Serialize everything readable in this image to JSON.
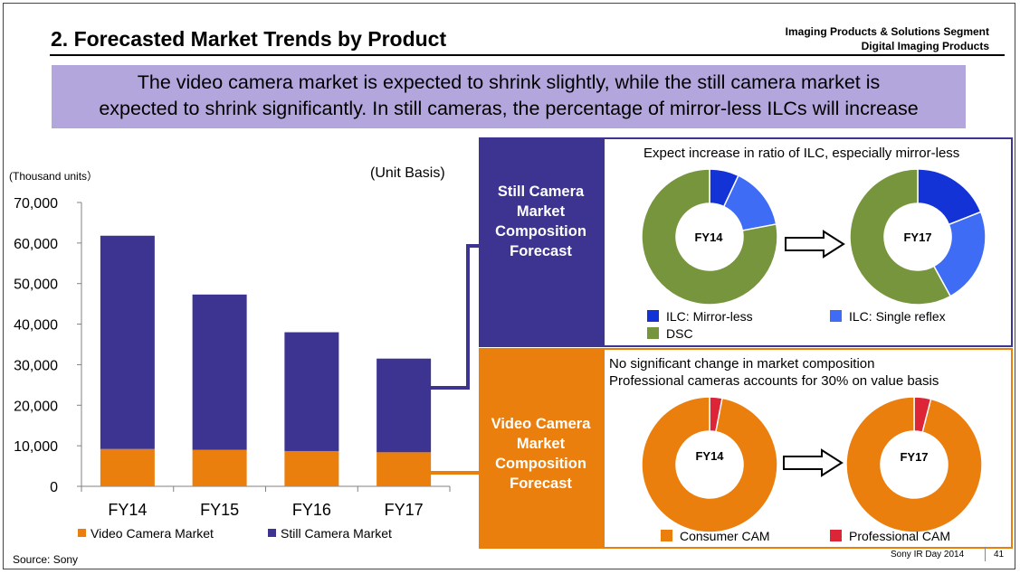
{
  "header": {
    "title": "2. Forecasted Market Trends by Product",
    "segment_line1": "Imaging Products & Solutions Segment",
    "segment_line2": "Digital Imaging Products"
  },
  "banner": {
    "line1": "The video camera market is expected to shrink slightly, while the still camera market is",
    "line2": "expected to shrink significantly. In still cameras, the percentage of mirror-less ILCs will increase"
  },
  "footer": {
    "source": "Source: Sony",
    "event": "Sony IR Day 2014",
    "page_number": "41"
  },
  "colors": {
    "still_camera": "#3d3492",
    "video_camera": "#ea7f0e",
    "banner": "#b3a6dd",
    "ilc_mirrorless": "#1433d6",
    "ilc_single_reflex": "#3f6cf5",
    "dsc": "#77953c",
    "consumer_cam": "#ea7f0e",
    "professional_cam": "#dc2638"
  },
  "chart_data": [
    {
      "type": "bar",
      "stacked": true,
      "units_label": "(Thousand units）",
      "basis_label": "(Unit Basis)",
      "categories": [
        "FY14",
        "FY15",
        "FY16",
        "FY17"
      ],
      "series": [
        {
          "name": "Video Camera Market",
          "values": [
            9200,
            9000,
            8700,
            8400
          ]
        },
        {
          "name": "Still Camera Market",
          "values": [
            52600,
            38300,
            29300,
            23100
          ]
        }
      ],
      "ylim": [
        0,
        70000
      ],
      "yticks": [
        0,
        10000,
        20000,
        30000,
        40000,
        50000,
        60000,
        70000
      ],
      "ytick_labels": [
        "0",
        "10,000",
        "20,000",
        "30,000",
        "40,000",
        "50,000",
        "60,000",
        "70,000"
      ],
      "grid": false,
      "legend_position": "bottom"
    },
    {
      "type": "pie",
      "donut": true,
      "group_label": "Still Camera Market Composition Forecast",
      "note": "Expect increase in ratio of ILC, especially mirror-less",
      "legend": [
        "ILC: Mirror-less",
        "ILC: Single reflex",
        "DSC"
      ],
      "charts": [
        {
          "label": "FY14",
          "slices": [
            {
              "name": "ILC: Mirror-less",
              "value": 7
            },
            {
              "name": "ILC: Single reflex",
              "value": 15
            },
            {
              "name": "DSC",
              "value": 78
            }
          ]
        },
        {
          "label": "FY17",
          "slices": [
            {
              "name": "ILC: Mirror-less",
              "value": 19
            },
            {
              "name": "ILC: Single reflex",
              "value": 23
            },
            {
              "name": "DSC",
              "value": 58
            }
          ]
        }
      ]
    },
    {
      "type": "pie",
      "donut": true,
      "group_label": "Video Camera Market Composition Forecast",
      "note_line1": "No significant change in market composition",
      "note_line2": "Professional cameras accounts for 30% on value basis",
      "legend": [
        "Consumer CAM",
        "Professional CAM"
      ],
      "charts": [
        {
          "label": "FY14",
          "slices": [
            {
              "name": "Professional CAM",
              "value": 3
            },
            {
              "name": "Consumer CAM",
              "value": 97
            }
          ]
        },
        {
          "label": "FY17",
          "slices": [
            {
              "name": "Professional CAM",
              "value": 4
            },
            {
              "name": "Consumer CAM",
              "value": 96
            }
          ]
        }
      ]
    }
  ]
}
